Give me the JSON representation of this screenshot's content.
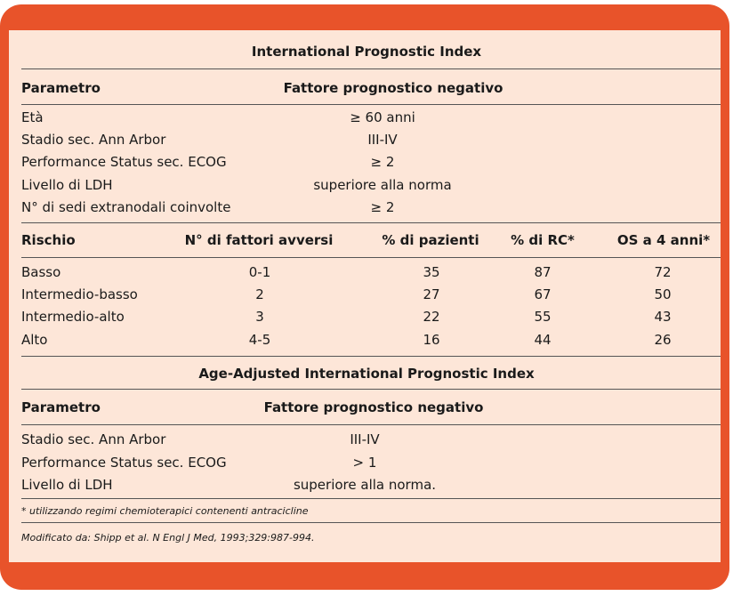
{
  "ipi": {
    "title": "International Prognostic Index",
    "header": {
      "param": "Parametro",
      "factor": "Fattore prognostico negativo"
    },
    "rows": [
      {
        "param": "Età",
        "factor": "≥ 60 anni"
      },
      {
        "param": "Stadio sec. Ann Arbor",
        "factor": "III-IV"
      },
      {
        "param": "Performance Status sec. ECOG",
        "factor": "≥ 2"
      },
      {
        "param": "Livello di LDH",
        "factor": "superiore alla norma"
      },
      {
        "param": "N° di sedi extranodali coinvolte",
        "factor": "≥ 2"
      }
    ]
  },
  "risk": {
    "header": {
      "rischio": "Rischio",
      "fattori": "N°  di fattori avversi",
      "pazienti": "% di pazienti",
      "rc": "% di RC*",
      "os": "OS a 4 anni*"
    },
    "rows": [
      {
        "rischio": "Basso",
        "fattori": "0-1",
        "pazienti": "35",
        "rc": "87",
        "os": "72"
      },
      {
        "rischio": "Intermedio-basso",
        "fattori": "2",
        "pazienti": "27",
        "rc": "67",
        "os": "50"
      },
      {
        "rischio": "Intermedio-alto",
        "fattori": "3",
        "pazienti": "22",
        "rc": "55",
        "os": "43"
      },
      {
        "rischio": "Alto",
        "fattori": "4-5",
        "pazienti": "16",
        "rc": "44",
        "os": "26"
      }
    ]
  },
  "aaipi": {
    "title": "Age-Adjusted International Prognostic Index",
    "header": {
      "param": "Parametro",
      "factor": "Fattore prognostico negativo"
    },
    "rows": [
      {
        "param": "Stadio sec. Ann Arbor",
        "factor": "III-IV"
      },
      {
        "param": "Performance Status sec. ECOG",
        "factor": "> 1"
      },
      {
        "param": "Livello di LDH",
        "factor": "superiore alla norma."
      }
    ]
  },
  "footnotes": {
    "note": "* utilizzando regimi chemioterapici contenenti antracicline",
    "source": "Modificato da: Shipp et al. N Engl J Med, 1993;329:987-994."
  }
}
